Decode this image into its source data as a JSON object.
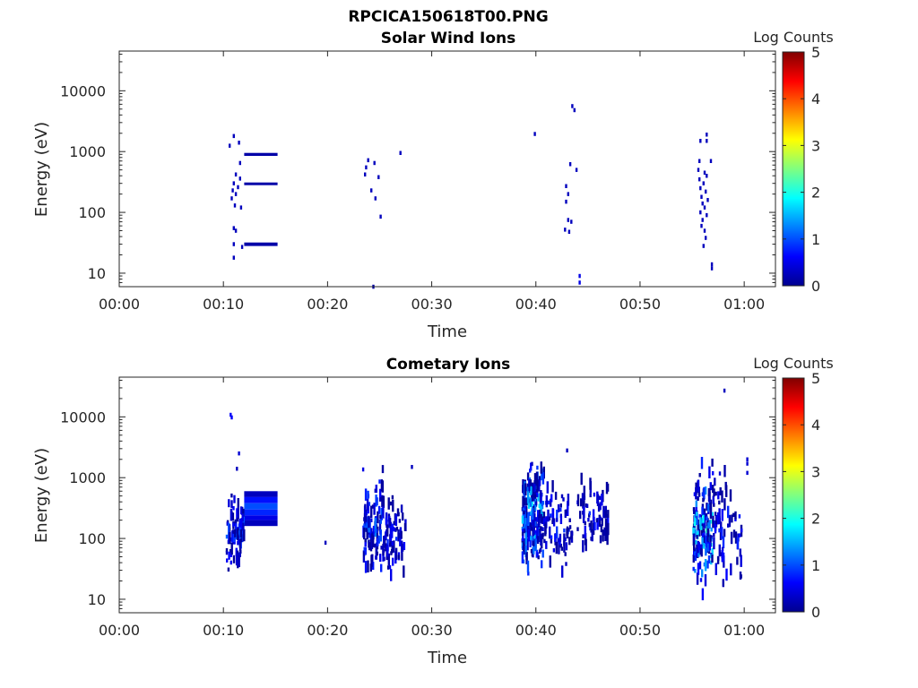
{
  "figure": {
    "title": "RPCICA150618T00.PNG"
  },
  "chart_data": [
    {
      "type": "heatmap",
      "title": "Solar Wind Ions",
      "xlabel": "Time",
      "ylabel": "Energy (eV)",
      "x_ticks": [
        "00:00",
        "00:10",
        "00:20",
        "00:30",
        "00:40",
        "00:50",
        "01:00"
      ],
      "x_range_min": [
        0,
        63
      ],
      "y_scale": "log",
      "y_ticks": [
        "10",
        "100",
        "1000",
        "10000"
      ],
      "y_range": [
        6,
        45000
      ],
      "colorbar": {
        "label": "Log Counts",
        "ticks": [
          "0",
          "1",
          "2",
          "3",
          "4",
          "5"
        ],
        "range": [
          0,
          5
        ]
      },
      "cells": [
        {
          "t": 11.0,
          "e": 1800,
          "v": 0.3
        },
        {
          "t": 11.5,
          "e": 1400,
          "v": 0.3
        },
        {
          "t": 10.6,
          "e": 1250,
          "v": 0.3
        },
        {
          "t": 11.6,
          "e": 650,
          "v": 0.3
        },
        {
          "t": 11.2,
          "e": 420,
          "v": 0.3
        },
        {
          "t": 11.6,
          "e": 360,
          "v": 0.3
        },
        {
          "t": 11.0,
          "e": 300,
          "v": 0.3
        },
        {
          "t": 11.4,
          "e": 260,
          "v": 0.3
        },
        {
          "t": 10.9,
          "e": 230,
          "v": 0.3
        },
        {
          "t": 11.2,
          "e": 200,
          "v": 0.3
        },
        {
          "t": 10.8,
          "e": 170,
          "v": 0.3
        },
        {
          "t": 11.1,
          "e": 130,
          "v": 0.3
        },
        {
          "t": 11.7,
          "e": 120,
          "v": 0.3
        },
        {
          "t": 11.0,
          "e": 55,
          "v": 0.3
        },
        {
          "t": 11.2,
          "e": 50,
          "v": 0.3
        },
        {
          "t": 11.0,
          "e": 30,
          "v": 0.3
        },
        {
          "t": 11.8,
          "e": 27,
          "v": 0.3
        },
        {
          "t": 11.0,
          "e": 18,
          "v": 0.3
        },
        {
          "t": 23.9,
          "e": 720,
          "v": 0.3
        },
        {
          "t": 24.5,
          "e": 650,
          "v": 0.3
        },
        {
          "t": 23.7,
          "e": 550,
          "v": 0.3
        },
        {
          "t": 23.6,
          "e": 420,
          "v": 0.3
        },
        {
          "t": 24.9,
          "e": 380,
          "v": 0.3
        },
        {
          "t": 24.2,
          "e": 230,
          "v": 0.3
        },
        {
          "t": 24.6,
          "e": 170,
          "v": 0.3
        },
        {
          "t": 25.1,
          "e": 85,
          "v": 0.3
        },
        {
          "t": 27.0,
          "e": 950,
          "v": 0.3
        },
        {
          "t": 24.4,
          "e": 6,
          "v": 0.2
        },
        {
          "t": 39.9,
          "e": 1950,
          "v": 0.3
        },
        {
          "t": 43.5,
          "e": 5600,
          "v": 0.3
        },
        {
          "t": 43.7,
          "e": 4800,
          "v": 0.3
        },
        {
          "t": 43.3,
          "e": 620,
          "v": 0.3
        },
        {
          "t": 43.9,
          "e": 500,
          "v": 0.3
        },
        {
          "t": 42.9,
          "e": 270,
          "v": 0.3
        },
        {
          "t": 43.1,
          "e": 200,
          "v": 0.3
        },
        {
          "t": 42.9,
          "e": 150,
          "v": 0.3
        },
        {
          "t": 43.1,
          "e": 75,
          "v": 0.3
        },
        {
          "t": 43.4,
          "e": 70,
          "v": 0.3
        },
        {
          "t": 42.8,
          "e": 52,
          "v": 0.3
        },
        {
          "t": 43.2,
          "e": 48,
          "v": 0.3
        },
        {
          "t": 44.2,
          "e": 9,
          "v": 0.5
        },
        {
          "t": 44.2,
          "e": 7,
          "v": 0.5
        },
        {
          "t": 55.8,
          "e": 1500,
          "v": 0.3
        },
        {
          "t": 56.4,
          "e": 1900,
          "v": 0.3
        },
        {
          "t": 56.4,
          "e": 1500,
          "v": 0.3
        },
        {
          "t": 55.7,
          "e": 700,
          "v": 0.3
        },
        {
          "t": 56.8,
          "e": 700,
          "v": 0.3
        },
        {
          "t": 55.6,
          "e": 500,
          "v": 0.3
        },
        {
          "t": 56.2,
          "e": 450,
          "v": 0.3
        },
        {
          "t": 56.4,
          "e": 400,
          "v": 0.3
        },
        {
          "t": 55.7,
          "e": 350,
          "v": 0.3
        },
        {
          "t": 56.1,
          "e": 300,
          "v": 0.3
        },
        {
          "t": 55.8,
          "e": 250,
          "v": 0.3
        },
        {
          "t": 56.3,
          "e": 220,
          "v": 0.3
        },
        {
          "t": 55.9,
          "e": 180,
          "v": 0.3
        },
        {
          "t": 56.5,
          "e": 160,
          "v": 0.3
        },
        {
          "t": 56.0,
          "e": 140,
          "v": 0.3
        },
        {
          "t": 56.2,
          "e": 120,
          "v": 0.3
        },
        {
          "t": 55.8,
          "e": 100,
          "v": 0.3
        },
        {
          "t": 56.4,
          "e": 90,
          "v": 0.3
        },
        {
          "t": 56.0,
          "e": 75,
          "v": 0.3
        },
        {
          "t": 55.9,
          "e": 60,
          "v": 0.3
        },
        {
          "t": 56.2,
          "e": 50,
          "v": 0.3
        },
        {
          "t": 56.3,
          "e": 38,
          "v": 0.3
        },
        {
          "t": 56.1,
          "e": 28,
          "v": 0.3
        },
        {
          "t": 56.9,
          "e": 14,
          "v": 0.3
        },
        {
          "t": 56.9,
          "e": 12,
          "v": 0.3
        }
      ],
      "bands": [
        {
          "t0": 12.0,
          "t1": 15.2,
          "e0": 850,
          "e1": 950,
          "v": 0.2
        },
        {
          "t0": 12.0,
          "t1": 15.2,
          "e0": 280,
          "e1": 310,
          "v": 0.2
        },
        {
          "t0": 12.0,
          "t1": 15.2,
          "e0": 28,
          "e1": 32,
          "v": 0.2
        }
      ]
    },
    {
      "type": "heatmap",
      "title": "Cometary Ions",
      "xlabel": "Time",
      "ylabel": "Energy (eV)",
      "x_ticks": [
        "00:00",
        "00:10",
        "00:20",
        "00:30",
        "00:40",
        "00:50",
        "01:00"
      ],
      "x_range_min": [
        0,
        63
      ],
      "y_scale": "log",
      "y_ticks": [
        "10",
        "100",
        "1000",
        "10000"
      ],
      "y_range": [
        6,
        45000
      ],
      "colorbar": {
        "label": "Log Counts",
        "ticks": [
          "0",
          "1",
          "2",
          "3",
          "4",
          "5"
        ],
        "range": [
          0,
          5
        ]
      },
      "bands": [
        {
          "t0": 12.0,
          "t1": 15.2,
          "e0": 480,
          "e1": 600,
          "v": 0.3
        },
        {
          "t0": 12.0,
          "t1": 15.2,
          "e0": 380,
          "e1": 480,
          "v": 0.7
        },
        {
          "t0": 12.0,
          "t1": 15.2,
          "e0": 300,
          "e1": 380,
          "v": 1.0
        },
        {
          "t0": 12.0,
          "t1": 15.2,
          "e0": 240,
          "e1": 300,
          "v": 0.8
        },
        {
          "t0": 12.0,
          "t1": 15.2,
          "e0": 200,
          "e1": 240,
          "v": 0.5
        },
        {
          "t0": 12.0,
          "t1": 15.2,
          "e0": 160,
          "e1": 200,
          "v": 0.3
        }
      ],
      "clusters": [
        {
          "t0": 10.3,
          "t1": 12.0,
          "emin": 25,
          "emax": 700,
          "vmax": 1.2,
          "n": 80
        },
        {
          "t0": 23.4,
          "t1": 25.4,
          "emin": 12,
          "emax": 2200,
          "vmax": 1.3,
          "n": 110
        },
        {
          "t0": 25.4,
          "t1": 27.5,
          "emin": 14,
          "emax": 800,
          "vmax": 0.9,
          "n": 70
        },
        {
          "t0": 38.7,
          "t1": 40.8,
          "emin": 18,
          "emax": 3200,
          "vmax": 2.0,
          "n": 200
        },
        {
          "t0": 40.8,
          "t1": 43.5,
          "emin": 25,
          "emax": 1200,
          "vmax": 1.0,
          "n": 70
        },
        {
          "t0": 44.0,
          "t1": 47.0,
          "emin": 30,
          "emax": 1500,
          "vmax": 0.9,
          "n": 70
        },
        {
          "t0": 55.1,
          "t1": 57.0,
          "emin": 8,
          "emax": 2700,
          "vmax": 2.2,
          "n": 150
        },
        {
          "t0": 57.0,
          "t1": 59.8,
          "emin": 8,
          "emax": 2000,
          "vmax": 1.0,
          "n": 70
        }
      ],
      "cells": [
        {
          "t": 10.7,
          "e": 10800,
          "v": 0.6
        },
        {
          "t": 10.8,
          "e": 9800,
          "v": 0.6
        },
        {
          "t": 11.5,
          "e": 2500,
          "v": 0.4
        },
        {
          "t": 11.3,
          "e": 1400,
          "v": 0.3
        },
        {
          "t": 19.8,
          "e": 85,
          "v": 0.3
        },
        {
          "t": 28.1,
          "e": 1500,
          "v": 0.3
        },
        {
          "t": 43.0,
          "e": 2800,
          "v": 0.3
        },
        {
          "t": 58.1,
          "e": 27000,
          "v": 0.3
        },
        {
          "t": 60.3,
          "e": 2000,
          "v": 0.4
        },
        {
          "t": 60.3,
          "e": 1700,
          "v": 0.4
        },
        {
          "t": 60.3,
          "e": 1200,
          "v": 0.4
        },
        {
          "t": 42.9,
          "e": 38,
          "v": 0.3
        }
      ]
    }
  ]
}
